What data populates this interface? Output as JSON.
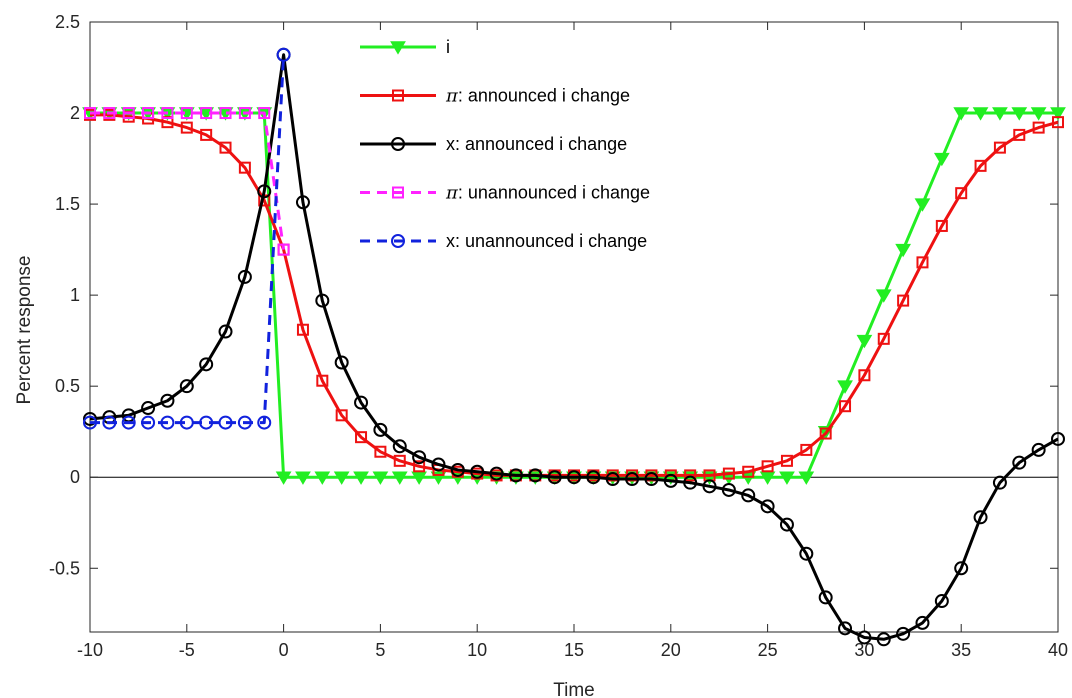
{
  "chart_data": {
    "type": "line",
    "title": "",
    "xlabel": "Time",
    "ylabel": "Percent response",
    "xlim": [
      -10,
      40
    ],
    "ylim": [
      -0.85,
      2.5
    ],
    "xticks": [
      -10,
      -5,
      0,
      5,
      10,
      15,
      20,
      25,
      30,
      35,
      40
    ],
    "xtick_labels": [
      "-10",
      "-5",
      "0",
      "5",
      "10",
      "15",
      "20",
      "25",
      "30",
      "35",
      "40"
    ],
    "yticks": [
      -0.5,
      0,
      0.5,
      1,
      1.5,
      2,
      2.5
    ],
    "ytick_labels": [
      "-0.5",
      "0",
      "0.5",
      "1",
      "1.5",
      "2",
      "2.5"
    ],
    "grid": false,
    "zero_line": true,
    "legend_position": "top-center",
    "series": [
      {
        "name": "i",
        "color": "#22ee22",
        "marker": "triangle-down",
        "linestyle": "solid",
        "x": [
          -10,
          -9,
          -8,
          -7,
          -6,
          -5,
          -4,
          -3,
          -2,
          -1,
          0,
          1,
          2,
          3,
          4,
          5,
          6,
          7,
          8,
          9,
          10,
          11,
          12,
          13,
          14,
          15,
          16,
          17,
          18,
          19,
          20,
          21,
          22,
          23,
          24,
          25,
          26,
          27,
          28,
          29,
          30,
          31,
          32,
          33,
          34,
          35,
          36,
          37,
          38,
          39,
          40
        ],
        "y": [
          2,
          2,
          2,
          2,
          2,
          2,
          2,
          2,
          2,
          2,
          0,
          0,
          0,
          0,
          0,
          0,
          0,
          0,
          0,
          0,
          0,
          0,
          0,
          0,
          0,
          0,
          0,
          0,
          0,
          0,
          0,
          0,
          0,
          0,
          0,
          0,
          0,
          0,
          0.25,
          0.5,
          0.75,
          1.0,
          1.25,
          1.5,
          1.75,
          2,
          2,
          2,
          2,
          2,
          2
        ]
      },
      {
        "name": "π: announced i change",
        "name_symbol": "π",
        "name_rest": ": announced i change",
        "color": "#ee1111",
        "marker": "square",
        "linestyle": "solid",
        "x": [
          -10,
          -9,
          -8,
          -7,
          -6,
          -5,
          -4,
          -3,
          -2,
          -1,
          0,
          1,
          2,
          3,
          4,
          5,
          6,
          7,
          8,
          9,
          10,
          11,
          12,
          13,
          14,
          15,
          16,
          17,
          18,
          19,
          20,
          21,
          22,
          23,
          24,
          25,
          26,
          27,
          28,
          29,
          30,
          31,
          32,
          33,
          34,
          35,
          36,
          37,
          38,
          39,
          40
        ],
        "y": [
          1.99,
          1.99,
          1.98,
          1.97,
          1.95,
          1.92,
          1.88,
          1.81,
          1.7,
          1.52,
          1.25,
          0.81,
          0.53,
          0.34,
          0.22,
          0.14,
          0.09,
          0.06,
          0.04,
          0.03,
          0.02,
          0.01,
          0.01,
          0.01,
          0.01,
          0.01,
          0.01,
          0.01,
          0.01,
          0.01,
          0.01,
          0.01,
          0.01,
          0.02,
          0.03,
          0.06,
          0.09,
          0.15,
          0.24,
          0.39,
          0.56,
          0.76,
          0.97,
          1.18,
          1.38,
          1.56,
          1.71,
          1.81,
          1.88,
          1.92,
          1.95
        ]
      },
      {
        "name": "x: announced i change",
        "color": "#000000",
        "marker": "circle",
        "linestyle": "solid",
        "x": [
          -10,
          -9,
          -8,
          -7,
          -6,
          -5,
          -4,
          -3,
          -2,
          -1,
          0,
          1,
          2,
          3,
          4,
          5,
          6,
          7,
          8,
          9,
          10,
          11,
          12,
          13,
          14,
          15,
          16,
          17,
          18,
          19,
          20,
          21,
          22,
          23,
          24,
          25,
          26,
          27,
          28,
          29,
          30,
          31,
          32,
          33,
          34,
          35,
          36,
          37,
          38,
          39,
          40
        ],
        "y": [
          0.32,
          0.33,
          0.34,
          0.38,
          0.42,
          0.5,
          0.62,
          0.8,
          1.1,
          1.57,
          2.32,
          1.51,
          0.97,
          0.63,
          0.41,
          0.26,
          0.17,
          0.11,
          0.07,
          0.04,
          0.03,
          0.02,
          0.01,
          0.01,
          0.0,
          0.0,
          0.0,
          -0.01,
          -0.01,
          -0.01,
          -0.02,
          -0.03,
          -0.05,
          -0.07,
          -0.1,
          -0.16,
          -0.26,
          -0.42,
          -0.66,
          -0.83,
          -0.88,
          -0.89,
          -0.86,
          -0.8,
          -0.68,
          -0.5,
          -0.22,
          -0.03,
          0.08,
          0.15,
          0.21
        ]
      },
      {
        "name": "π: unannounced i change",
        "name_symbol": "π",
        "name_rest": ": unannounced i change",
        "color": "#ff22ff",
        "marker": "square",
        "linestyle": "dashed",
        "x": [
          -10,
          -9,
          -8,
          -7,
          -6,
          -5,
          -4,
          -3,
          -2,
          -1,
          0
        ],
        "y": [
          2,
          2,
          2,
          2,
          2,
          2,
          2,
          2,
          2,
          2,
          1.25
        ]
      },
      {
        "name": "x: unannounced i change",
        "color": "#1122dd",
        "marker": "circle",
        "linestyle": "dashed",
        "x": [
          -10,
          -9,
          -8,
          -7,
          -6,
          -5,
          -4,
          -3,
          -2,
          -1,
          0
        ],
        "y": [
          0.3,
          0.3,
          0.3,
          0.3,
          0.3,
          0.3,
          0.3,
          0.3,
          0.3,
          0.3,
          2.32
        ]
      }
    ]
  }
}
